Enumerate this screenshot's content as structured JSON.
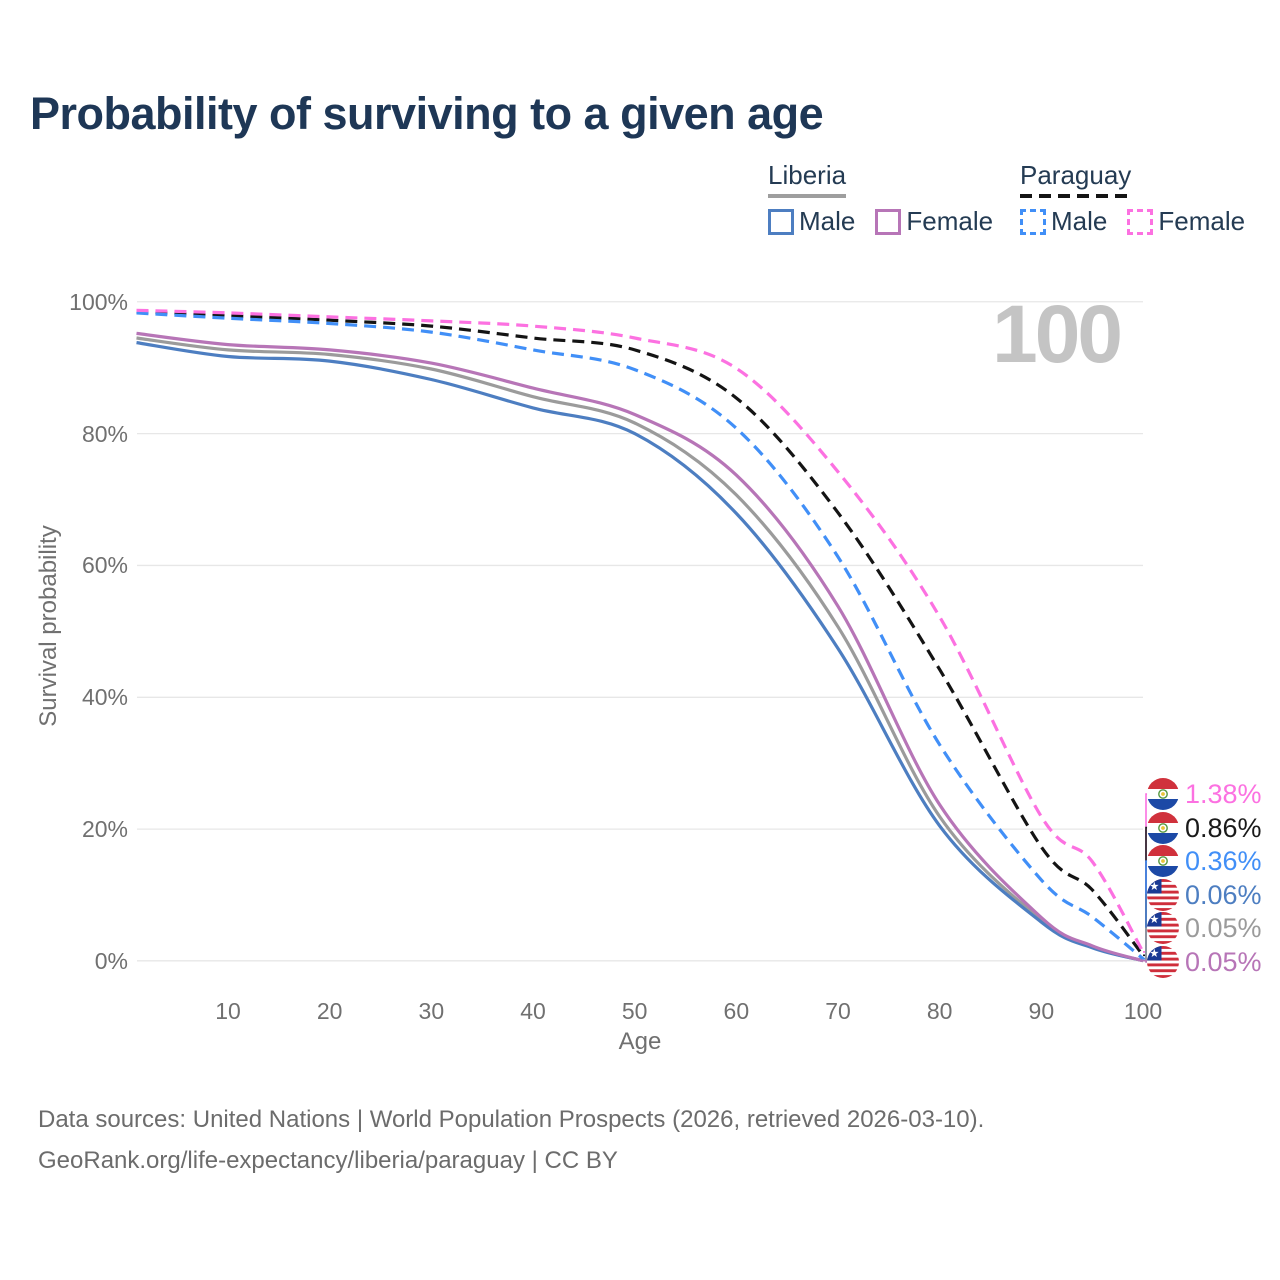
{
  "title": "Probability of surviving to a given age",
  "watermark_age": "100",
  "legend": {
    "groups": [
      {
        "country": "Liberia",
        "line_style": "solid",
        "underline_color": "#9e9e9e",
        "items": [
          {
            "label": "Male",
            "color": "#4d7ec1"
          },
          {
            "label": "Female",
            "color": "#b775b7"
          }
        ]
      },
      {
        "country": "Paraguay",
        "line_style": "dashed",
        "underline_color": "#141414",
        "items": [
          {
            "label": "Male",
            "color": "#418ff7"
          },
          {
            "label": "Female",
            "color": "#fc71e1"
          }
        ]
      }
    ]
  },
  "axes": {
    "x_label": "Age",
    "y_label": "Survival probability",
    "x_ticks": [
      "10",
      "20",
      "30",
      "40",
      "50",
      "60",
      "70",
      "80",
      "90",
      "100"
    ],
    "x_tick_values": [
      10,
      20,
      30,
      40,
      50,
      60,
      70,
      80,
      90,
      100
    ],
    "y_ticks": [
      "0%",
      "20%",
      "40%",
      "60%",
      "80%",
      "100%"
    ],
    "y_tick_values": [
      0,
      20,
      40,
      60,
      80,
      100
    ]
  },
  "chart_data": {
    "type": "line",
    "title": "Probability of surviving to a given age",
    "xlabel": "Age",
    "ylabel": "Survival probability",
    "xlim": [
      1,
      100
    ],
    "ylim": [
      0,
      100
    ],
    "grid": "horizontal",
    "legend_position": "top-right",
    "x": [
      1,
      10,
      20,
      30,
      40,
      50,
      60,
      70,
      80,
      90,
      95,
      100
    ],
    "series": [
      {
        "id": "liberia_male",
        "name": "Liberia Male",
        "color": "#4d7ec1",
        "dash": "solid",
        "values": [
          93.8,
          91.7,
          91.0,
          88.2,
          83.9,
          80.0,
          67.9,
          47.4,
          20.5,
          5.9,
          2.0,
          0.06
        ],
        "end_label": "0.06%"
      },
      {
        "id": "liberia_female",
        "name": "Liberia Female",
        "color": "#b775b7",
        "dash": "solid",
        "values": [
          95.2,
          93.5,
          92.7,
          90.7,
          86.9,
          82.9,
          73.7,
          53.8,
          23.7,
          6.6,
          2.3,
          0.05
        ],
        "end_label": "0.05%"
      },
      {
        "id": "liberia_both",
        "name": "Liberia Both sexes",
        "color": "#9b9b9b",
        "dash": "solid",
        "values": [
          94.5,
          92.7,
          92.0,
          89.8,
          85.6,
          81.6,
          70.7,
          50.7,
          21.9,
          6.2,
          2.1,
          0.05
        ],
        "end_label": "0.05%"
      },
      {
        "id": "paraguay_male",
        "name": "Paraguay Male",
        "color": "#418ff7",
        "dash": "dashed",
        "values": [
          98.3,
          97.5,
          96.7,
          95.4,
          92.7,
          89.7,
          80.8,
          61.3,
          32.8,
          12.3,
          6.7,
          0.36
        ],
        "end_label": "0.36%"
      },
      {
        "id": "paraguay_female",
        "name": "Paraguay Female",
        "color": "#fc71e1",
        "dash": "dashed",
        "values": [
          98.7,
          98.3,
          97.7,
          97.1,
          96.3,
          94.5,
          89.9,
          74.2,
          52.2,
          21.9,
          15.1,
          1.38
        ],
        "end_label": "1.38%"
      },
      {
        "id": "paraguay_both",
        "name": "Paraguay Both sexes",
        "color": "#141414",
        "dash": "dashed",
        "values": [
          98.5,
          97.9,
          97.2,
          96.3,
          94.5,
          92.7,
          85.4,
          68.0,
          44.2,
          17.3,
          10.8,
          0.86
        ],
        "end_label": "0.86%"
      }
    ]
  },
  "end_labels": [
    {
      "value": "1.38%",
      "color": "#fc71e1",
      "flag": "paraguay-flag-icon",
      "series": "paraguay_female"
    },
    {
      "value": "0.86%",
      "color": "#1a1a1a",
      "flag": "paraguay-flag-icon",
      "series": "paraguay_both"
    },
    {
      "value": "0.36%",
      "color": "#418ff7",
      "flag": "paraguay-flag-icon",
      "series": "paraguay_male"
    },
    {
      "value": "0.06%",
      "color": "#4d7ec1",
      "flag": "liberia-flag-icon",
      "series": "liberia_male"
    },
    {
      "value": "0.05%",
      "color": "#9b9b9b",
      "flag": "liberia-flag-icon",
      "series": "liberia_both"
    },
    {
      "value": "0.05%",
      "color": "#b775b7",
      "flag": "liberia-flag-icon",
      "series": "liberia_female"
    }
  ],
  "footer": {
    "line1": "Data sources: United Nations | World Population Prospects (2026, retrieved 2026-03-10).",
    "line2": "GeoRank.org/life-expectancy/liberia/paraguay | CC BY"
  }
}
